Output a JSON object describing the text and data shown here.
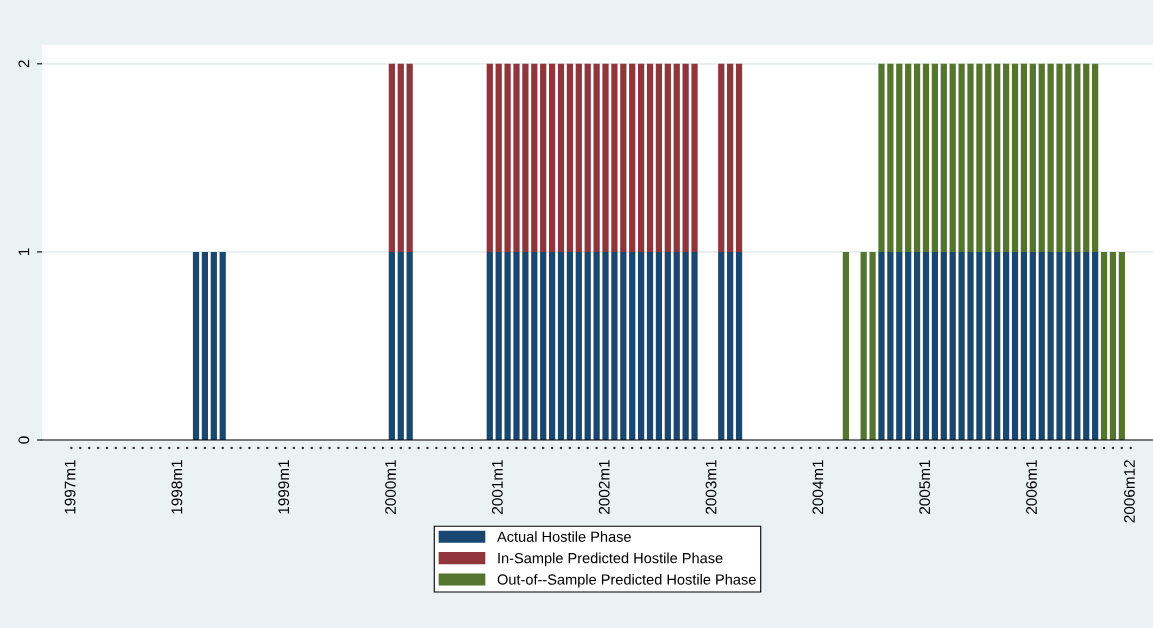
{
  "chart_data": {
    "type": "bar",
    "stacked": true,
    "categories": [
      "1997m1",
      null,
      null,
      null,
      null,
      null,
      null,
      null,
      null,
      null,
      null,
      null,
      "1998m1",
      null,
      null,
      null,
      null,
      null,
      null,
      null,
      null,
      null,
      null,
      null,
      "1999m1",
      null,
      null,
      null,
      null,
      null,
      null,
      null,
      null,
      null,
      null,
      null,
      "2000m1",
      null,
      null,
      null,
      null,
      null,
      null,
      null,
      null,
      null,
      null,
      null,
      "2001m1",
      null,
      null,
      null,
      null,
      null,
      null,
      null,
      null,
      null,
      null,
      null,
      "2002m1",
      null,
      null,
      null,
      null,
      null,
      null,
      null,
      null,
      null,
      null,
      null,
      "2003m1",
      null,
      null,
      null,
      null,
      null,
      null,
      null,
      null,
      null,
      null,
      null,
      "2004m1",
      null,
      null,
      null,
      null,
      null,
      null,
      null,
      null,
      null,
      null,
      null,
      "2005m1",
      null,
      null,
      null,
      null,
      null,
      null,
      null,
      null,
      null,
      null,
      null,
      "2006m1",
      null,
      null,
      null,
      null,
      null,
      null,
      null,
      null,
      null,
      null,
      "2006m12"
    ],
    "series": [
      {
        "name": "Actual Hostile Phase",
        "color": "#1a476f",
        "values": [
          0,
          0,
          0,
          0,
          0,
          0,
          0,
          0,
          0,
          0,
          0,
          0,
          0,
          0,
          1,
          1,
          1,
          1,
          0,
          0,
          0,
          0,
          0,
          0,
          0,
          0,
          0,
          0,
          0,
          0,
          0,
          0,
          0,
          0,
          0,
          0,
          1,
          1,
          1,
          0,
          0,
          0,
          0,
          0,
          0,
          0,
          0,
          1,
          1,
          1,
          1,
          1,
          1,
          1,
          1,
          1,
          1,
          1,
          1,
          1,
          1,
          1,
          1,
          1,
          1,
          1,
          1,
          1,
          1,
          1,
          1,
          0,
          0,
          1,
          1,
          1,
          0,
          0,
          0,
          0,
          0,
          0,
          0,
          0,
          0,
          0,
          0,
          0,
          0,
          0,
          0,
          1,
          1,
          1,
          1,
          1,
          1,
          1,
          1,
          1,
          1,
          1,
          1,
          1,
          1,
          1,
          1,
          1,
          1,
          1,
          1,
          1,
          1,
          1,
          1,
          1,
          0,
          0,
          0,
          0
        ]
      },
      {
        "name": "In-Sample Predicted Hostile Phase",
        "color": "#90353b",
        "values": [
          0,
          0,
          0,
          0,
          0,
          0,
          0,
          0,
          0,
          0,
          0,
          0,
          0,
          0,
          0,
          0,
          0,
          0,
          0,
          0,
          0,
          0,
          0,
          0,
          0,
          0,
          0,
          0,
          0,
          0,
          0,
          0,
          0,
          0,
          0,
          0,
          1,
          1,
          1,
          0,
          0,
          0,
          0,
          0,
          0,
          0,
          0,
          1,
          1,
          1,
          1,
          1,
          1,
          1,
          1,
          1,
          1,
          1,
          1,
          1,
          1,
          1,
          1,
          1,
          1,
          1,
          1,
          1,
          1,
          1,
          1,
          0,
          0,
          1,
          1,
          1,
          0,
          0,
          0,
          0,
          0,
          0,
          0,
          0,
          0,
          0,
          0,
          0,
          0,
          0,
          0,
          0,
          0,
          0,
          0,
          0,
          0,
          0,
          0,
          0,
          0,
          0,
          0,
          0,
          0,
          0,
          0,
          0,
          0,
          0,
          0,
          0,
          0,
          0,
          0,
          0,
          0,
          0,
          0,
          0
        ]
      },
      {
        "name": "Out-of--Sample Predicted Hostile Phase",
        "color": "#55752f",
        "values": [
          0,
          0,
          0,
          0,
          0,
          0,
          0,
          0,
          0,
          0,
          0,
          0,
          0,
          0,
          0,
          0,
          0,
          0,
          0,
          0,
          0,
          0,
          0,
          0,
          0,
          0,
          0,
          0,
          0,
          0,
          0,
          0,
          0,
          0,
          0,
          0,
          0,
          0,
          0,
          0,
          0,
          0,
          0,
          0,
          0,
          0,
          0,
          0,
          0,
          0,
          0,
          0,
          0,
          0,
          0,
          0,
          0,
          0,
          0,
          0,
          0,
          0,
          0,
          0,
          0,
          0,
          0,
          0,
          0,
          0,
          0,
          0,
          0,
          0,
          0,
          0,
          0,
          0,
          0,
          0,
          0,
          0,
          0,
          0,
          0,
          0,
          0,
          1,
          0,
          1,
          1,
          1,
          1,
          1,
          1,
          1,
          1,
          1,
          1,
          1,
          1,
          1,
          1,
          1,
          1,
          1,
          1,
          1,
          1,
          1,
          1,
          1,
          1,
          1,
          1,
          1,
          1,
          1,
          1,
          0
        ]
      }
    ],
    "ylim": [
      0,
      2.1
    ],
    "yticks": [
      0,
      1,
      2
    ],
    "grid": "y",
    "legend": "bottom"
  }
}
